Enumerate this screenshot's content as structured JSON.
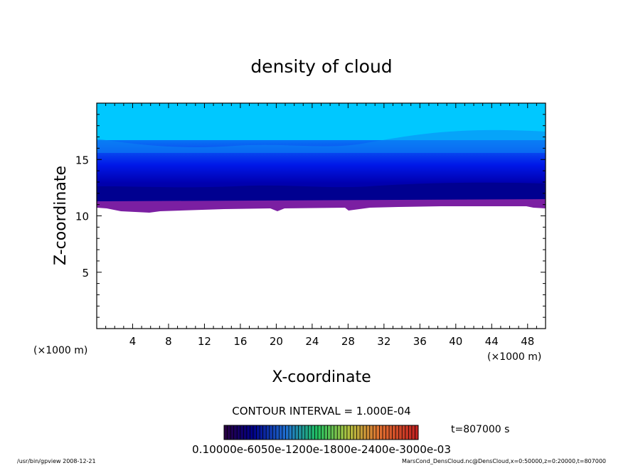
{
  "chart_data": {
    "type": "contour",
    "title": "density of cloud",
    "xlabel": "X-coordinate",
    "ylabel": "Z-coordinate",
    "x_unit": "(×1000 m)",
    "y_unit": "(×1000 m)",
    "xlim": [
      0,
      50
    ],
    "ylim": [
      0,
      20
    ],
    "xticks": [
      "4",
      "8",
      "12",
      "16",
      "20",
      "24",
      "28",
      "32",
      "36",
      "40",
      "44",
      "48"
    ],
    "yticks": [
      "5",
      "10",
      "15"
    ],
    "contour_interval_text": "CONTOUR INTERVAL = 1.000E-04",
    "time_text": "t=807000 s",
    "colorbar_labels_text": "0.10000e-6050e-1200e-1800e-2400e-3000e-03",
    "cloud_base_z": 11,
    "cloud_top_z": 20,
    "colors": [
      "#7b1fa2",
      "#0000a0",
      "#0018e8",
      "#0b58f2",
      "#0b86f4",
      "#00c8ff"
    ]
  },
  "footer": {
    "left": "/usr/bin/gpview   2008-12-21",
    "right": "MarsCond_DensCloud.nc@DensCloud,x=0:50000,z=0:20000,t=807000"
  }
}
